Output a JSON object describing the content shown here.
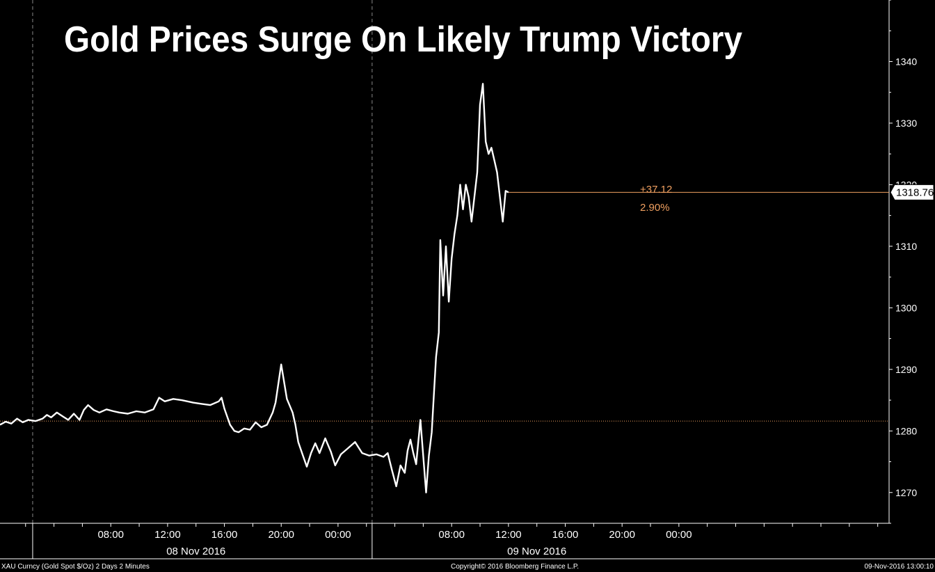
{
  "chart_data": {
    "type": "line",
    "title": "Gold Prices Surge On Likely Trump Victory",
    "y_ticks": [
      1270,
      1280,
      1290,
      1300,
      1310,
      1320,
      1330,
      1340
    ],
    "ylim": [
      1265,
      1350
    ],
    "time_range_hours": [
      0,
      62.6
    ],
    "x_ticks": [
      {
        "t": 7.8,
        "label": "08:00"
      },
      {
        "t": 11.8,
        "label": "12:00"
      },
      {
        "t": 15.8,
        "label": "16:00"
      },
      {
        "t": 19.8,
        "label": "20:00"
      },
      {
        "t": 23.8,
        "label": "00:00"
      },
      {
        "t": 31.8,
        "label": "08:00"
      },
      {
        "t": 35.8,
        "label": "12:00"
      },
      {
        "t": 39.8,
        "label": "16:00"
      },
      {
        "t": 43.8,
        "label": "20:00"
      },
      {
        "t": 47.8,
        "label": "00:00"
      }
    ],
    "date_labels": [
      {
        "t": 13.8,
        "label": "08 Nov 2016"
      },
      {
        "t": 37.8,
        "label": "09 Nov 2016"
      }
    ],
    "day_separators": [
      2.3,
      26.2
    ],
    "reference_line": 1281.6,
    "last_price": 1318.76,
    "last_price_label": "1318.76",
    "change_label": "+37.12",
    "change_pct_label": "2.90%",
    "series": [
      {
        "x": [
          0.0,
          0.4,
          0.8,
          1.2,
          1.6,
          2.0,
          2.5,
          3.0,
          3.3,
          3.6,
          4.0,
          4.4,
          4.8,
          5.2,
          5.6,
          5.9,
          6.2,
          6.6,
          7.0,
          7.5,
          8.0,
          8.4,
          9.0,
          9.6,
          10.2,
          10.8,
          11.2,
          11.6,
          12.2,
          12.8,
          13.2,
          13.6,
          14.2,
          14.8,
          15.4,
          15.6,
          15.8,
          16.2,
          16.5,
          16.8,
          17.2,
          17.6,
          18.0,
          18.4,
          18.8,
          19.2,
          19.4,
          19.8,
          20.2,
          20.6,
          20.8,
          21.0,
          21.3,
          21.6,
          21.9,
          22.2,
          22.5,
          22.9,
          23.3,
          23.6,
          24.0,
          24.5,
          25.0,
          25.5,
          26.0,
          26.5,
          27.0,
          27.3,
          27.6,
          27.9,
          28.2,
          28.5,
          28.7,
          28.9,
          29.1,
          29.3,
          29.6,
          30.0,
          30.2,
          30.4,
          30.5,
          30.7,
          30.9,
          31.0,
          31.2,
          31.4,
          31.6,
          31.8,
          32.0,
          32.2,
          32.4,
          32.6,
          32.8,
          33.0,
          33.2,
          33.4,
          33.6,
          33.8,
          34.0,
          34.2,
          34.4,
          34.6,
          34.8,
          35.0,
          35.2,
          35.4,
          35.6,
          35.8
        ],
        "values": [
          1281.0,
          1281.5,
          1281.2,
          1282.0,
          1281.4,
          1281.8,
          1281.6,
          1282.0,
          1282.6,
          1282.2,
          1283.0,
          1282.4,
          1281.8,
          1282.8,
          1281.8,
          1283.4,
          1284.2,
          1283.4,
          1283.0,
          1283.5,
          1283.2,
          1283.0,
          1282.8,
          1283.2,
          1283.0,
          1283.5,
          1285.4,
          1284.8,
          1285.2,
          1285.0,
          1284.8,
          1284.6,
          1284.4,
          1284.2,
          1284.8,
          1285.4,
          1283.6,
          1281.0,
          1280.0,
          1279.8,
          1280.4,
          1280.2,
          1281.4,
          1280.6,
          1281.0,
          1283.0,
          1284.6,
          1290.8,
          1285.2,
          1283.0,
          1281.0,
          1278.2,
          1276.2,
          1274.2,
          1276.4,
          1278.0,
          1276.4,
          1278.8,
          1276.6,
          1274.4,
          1276.2,
          1277.2,
          1278.2,
          1276.4,
          1276.0,
          1276.2,
          1275.8,
          1276.4,
          1273.6,
          1271.0,
          1274.4,
          1273.2,
          1276.8,
          1278.6,
          1276.4,
          1274.6,
          1281.8,
          1270.0,
          1276.0,
          1279.8,
          1284.0,
          1292.0,
          1296.0,
          1311.0,
          1302.0,
          1310.0,
          1301.0,
          1308.0,
          1312.0,
          1315.0,
          1320.0,
          1316.0,
          1320.0,
          1318.0,
          1314.0,
          1318.0,
          1322.0,
          1333.0,
          1336.4,
          1327.0,
          1325.0,
          1326.0,
          1324.0,
          1322.0,
          1318.0,
          1314.0,
          1319.0,
          1318.76
        ]
      }
    ]
  },
  "footer": {
    "left": "XAU Curncy (Gold Spot   $/Oz) 2 Days 2 Minutes",
    "center": "Copyright© 2016 Bloomberg Finance L.P.",
    "right": "09-Nov-2016 13:00:10"
  },
  "colors": {
    "background": "#000000",
    "line": "#ffffff",
    "reference": "#f0a060",
    "accent": "#f0a060"
  }
}
